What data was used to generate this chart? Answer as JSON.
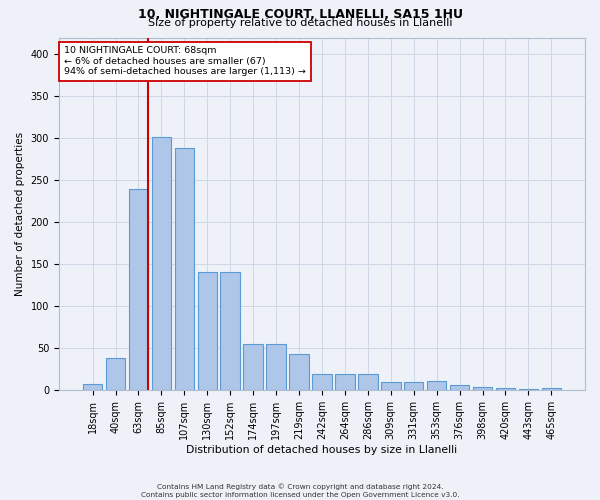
{
  "title1": "10, NIGHTINGALE COURT, LLANELLI, SA15 1HU",
  "title2": "Size of property relative to detached houses in Llanelli",
  "xlabel": "Distribution of detached houses by size in Llanelli",
  "ylabel": "Number of detached properties",
  "categories": [
    "18sqm",
    "40sqm",
    "63sqm",
    "85sqm",
    "107sqm",
    "130sqm",
    "152sqm",
    "174sqm",
    "197sqm",
    "219sqm",
    "242sqm",
    "264sqm",
    "286sqm",
    "309sqm",
    "331sqm",
    "353sqm",
    "376sqm",
    "398sqm",
    "420sqm",
    "443sqm",
    "465sqm"
  ],
  "values": [
    8,
    38,
    240,
    302,
    288,
    141,
    141,
    55,
    55,
    43,
    19,
    19,
    20,
    10,
    10,
    11,
    6,
    4,
    3,
    2,
    3
  ],
  "bar_color": "#aec6e8",
  "bar_edge_color": "#5b9bd5",
  "grid_color": "#d0d8e8",
  "background_color": "#eef2f8",
  "vline_color": "#cc0000",
  "annotation_text": "10 NIGHTINGALE COURT: 68sqm\n← 6% of detached houses are smaller (67)\n94% of semi-detached houses are larger (1,113) →",
  "annotation_box_color": "#ffffff",
  "annotation_box_edge": "#cc0000",
  "footer1": "Contains HM Land Registry data © Crown copyright and database right 2024.",
  "footer2": "Contains public sector information licensed under the Open Government Licence v3.0.",
  "ylim": [
    0,
    420
  ],
  "yticks": [
    0,
    50,
    100,
    150,
    200,
    250,
    300,
    350,
    400
  ]
}
